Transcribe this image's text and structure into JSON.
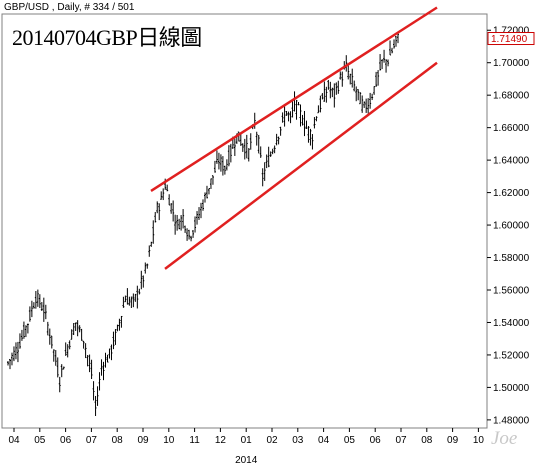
{
  "header": {
    "symbol_line": "GBP/USD , Daily, # 334 / 501",
    "title": "20140704GBP日線圖",
    "watermark": "Joe"
  },
  "chart_data": {
    "type": "candlestick",
    "title": "20140704GBP日線圖",
    "series_name": "GBP/USD",
    "ylim": [
      1.475,
      1.73
    ],
    "y_ticks": [
      1.48,
      1.5,
      1.52,
      1.54,
      1.56,
      1.58,
      1.6,
      1.62,
      1.64,
      1.66,
      1.68,
      1.7,
      1.72
    ],
    "y_tick_labels": [
      "1.48000",
      "1.50000",
      "1.52000",
      "1.54000",
      "1.56000",
      "1.58000",
      "1.60000",
      "1.62000",
      "1.64000",
      "1.66000",
      "1.68000",
      "1.70000",
      "1.72000"
    ],
    "last_price_label": "1.71490",
    "last_price": 1.7149,
    "x_ticks": [
      "04",
      "05",
      "06",
      "07",
      "08",
      "09",
      "10",
      "11",
      "12",
      "01",
      "02",
      "03",
      "04",
      "05",
      "06",
      "07",
      "08",
      "09",
      "10"
    ],
    "x_year_label": "2014",
    "x_year_label_at": "01",
    "price_path": [
      [
        0,
        1.515
      ],
      [
        5,
        1.525
      ],
      [
        10,
        1.54
      ],
      [
        14,
        1.556
      ],
      [
        18,
        1.548
      ],
      [
        22,
        1.528
      ],
      [
        26,
        1.505
      ],
      [
        30,
        1.525
      ],
      [
        34,
        1.54
      ],
      [
        38,
        1.53
      ],
      [
        42,
        1.508
      ],
      [
        44,
        1.487
      ],
      [
        47,
        1.512
      ],
      [
        51,
        1.52
      ],
      [
        55,
        1.535
      ],
      [
        59,
        1.555
      ],
      [
        63,
        1.552
      ],
      [
        66,
        1.56
      ],
      [
        70,
        1.575
      ],
      [
        73,
        1.595
      ],
      [
        75,
        1.61
      ],
      [
        77,
        1.615
      ],
      [
        79,
        1.625
      ],
      [
        82,
        1.612
      ],
      [
        85,
        1.6
      ],
      [
        88,
        1.605
      ],
      [
        91,
        1.593
      ],
      [
        94,
        1.6
      ],
      [
        97,
        1.61
      ],
      [
        100,
        1.62
      ],
      [
        103,
        1.63
      ],
      [
        106,
        1.64
      ],
      [
        109,
        1.635
      ],
      [
        112,
        1.645
      ],
      [
        115,
        1.655
      ],
      [
        118,
        1.65
      ],
      [
        121,
        1.645
      ],
      [
        124,
        1.663
      ],
      [
        126,
        1.65
      ],
      [
        128,
        1.63
      ],
      [
        131,
        1.64
      ],
      [
        134,
        1.65
      ],
      [
        137,
        1.66
      ],
      [
        140,
        1.67
      ],
      [
        142,
        1.665
      ],
      [
        144,
        1.675
      ],
      [
        147,
        1.668
      ],
      [
        150,
        1.66
      ],
      [
        153,
        1.655
      ],
      [
        155,
        1.668
      ],
      [
        158,
        1.677
      ],
      [
        161,
        1.685
      ],
      [
        164,
        1.68
      ],
      [
        167,
        1.69
      ],
      [
        170,
        1.697
      ],
      [
        173,
        1.688
      ],
      [
        176,
        1.68
      ],
      [
        179,
        1.672
      ],
      [
        182,
        1.677
      ],
      [
        185,
        1.688
      ],
      [
        188,
        1.7
      ],
      [
        191,
        1.702
      ],
      [
        194,
        1.71
      ],
      [
        196,
        1.7149
      ]
    ],
    "channel_lines": [
      {
        "name": "upper",
        "from": [
          1.621,
          "2013-09"
        ],
        "to": [
          1.734,
          "2014-08"
        ]
      },
      {
        "name": "lower",
        "from": [
          1.573,
          "2013-10"
        ],
        "to": [
          1.7,
          "2014-08"
        ]
      }
    ],
    "colors": {
      "candles": "#000000",
      "channel": "#e02020",
      "last_price_box": "#cc0000"
    }
  }
}
